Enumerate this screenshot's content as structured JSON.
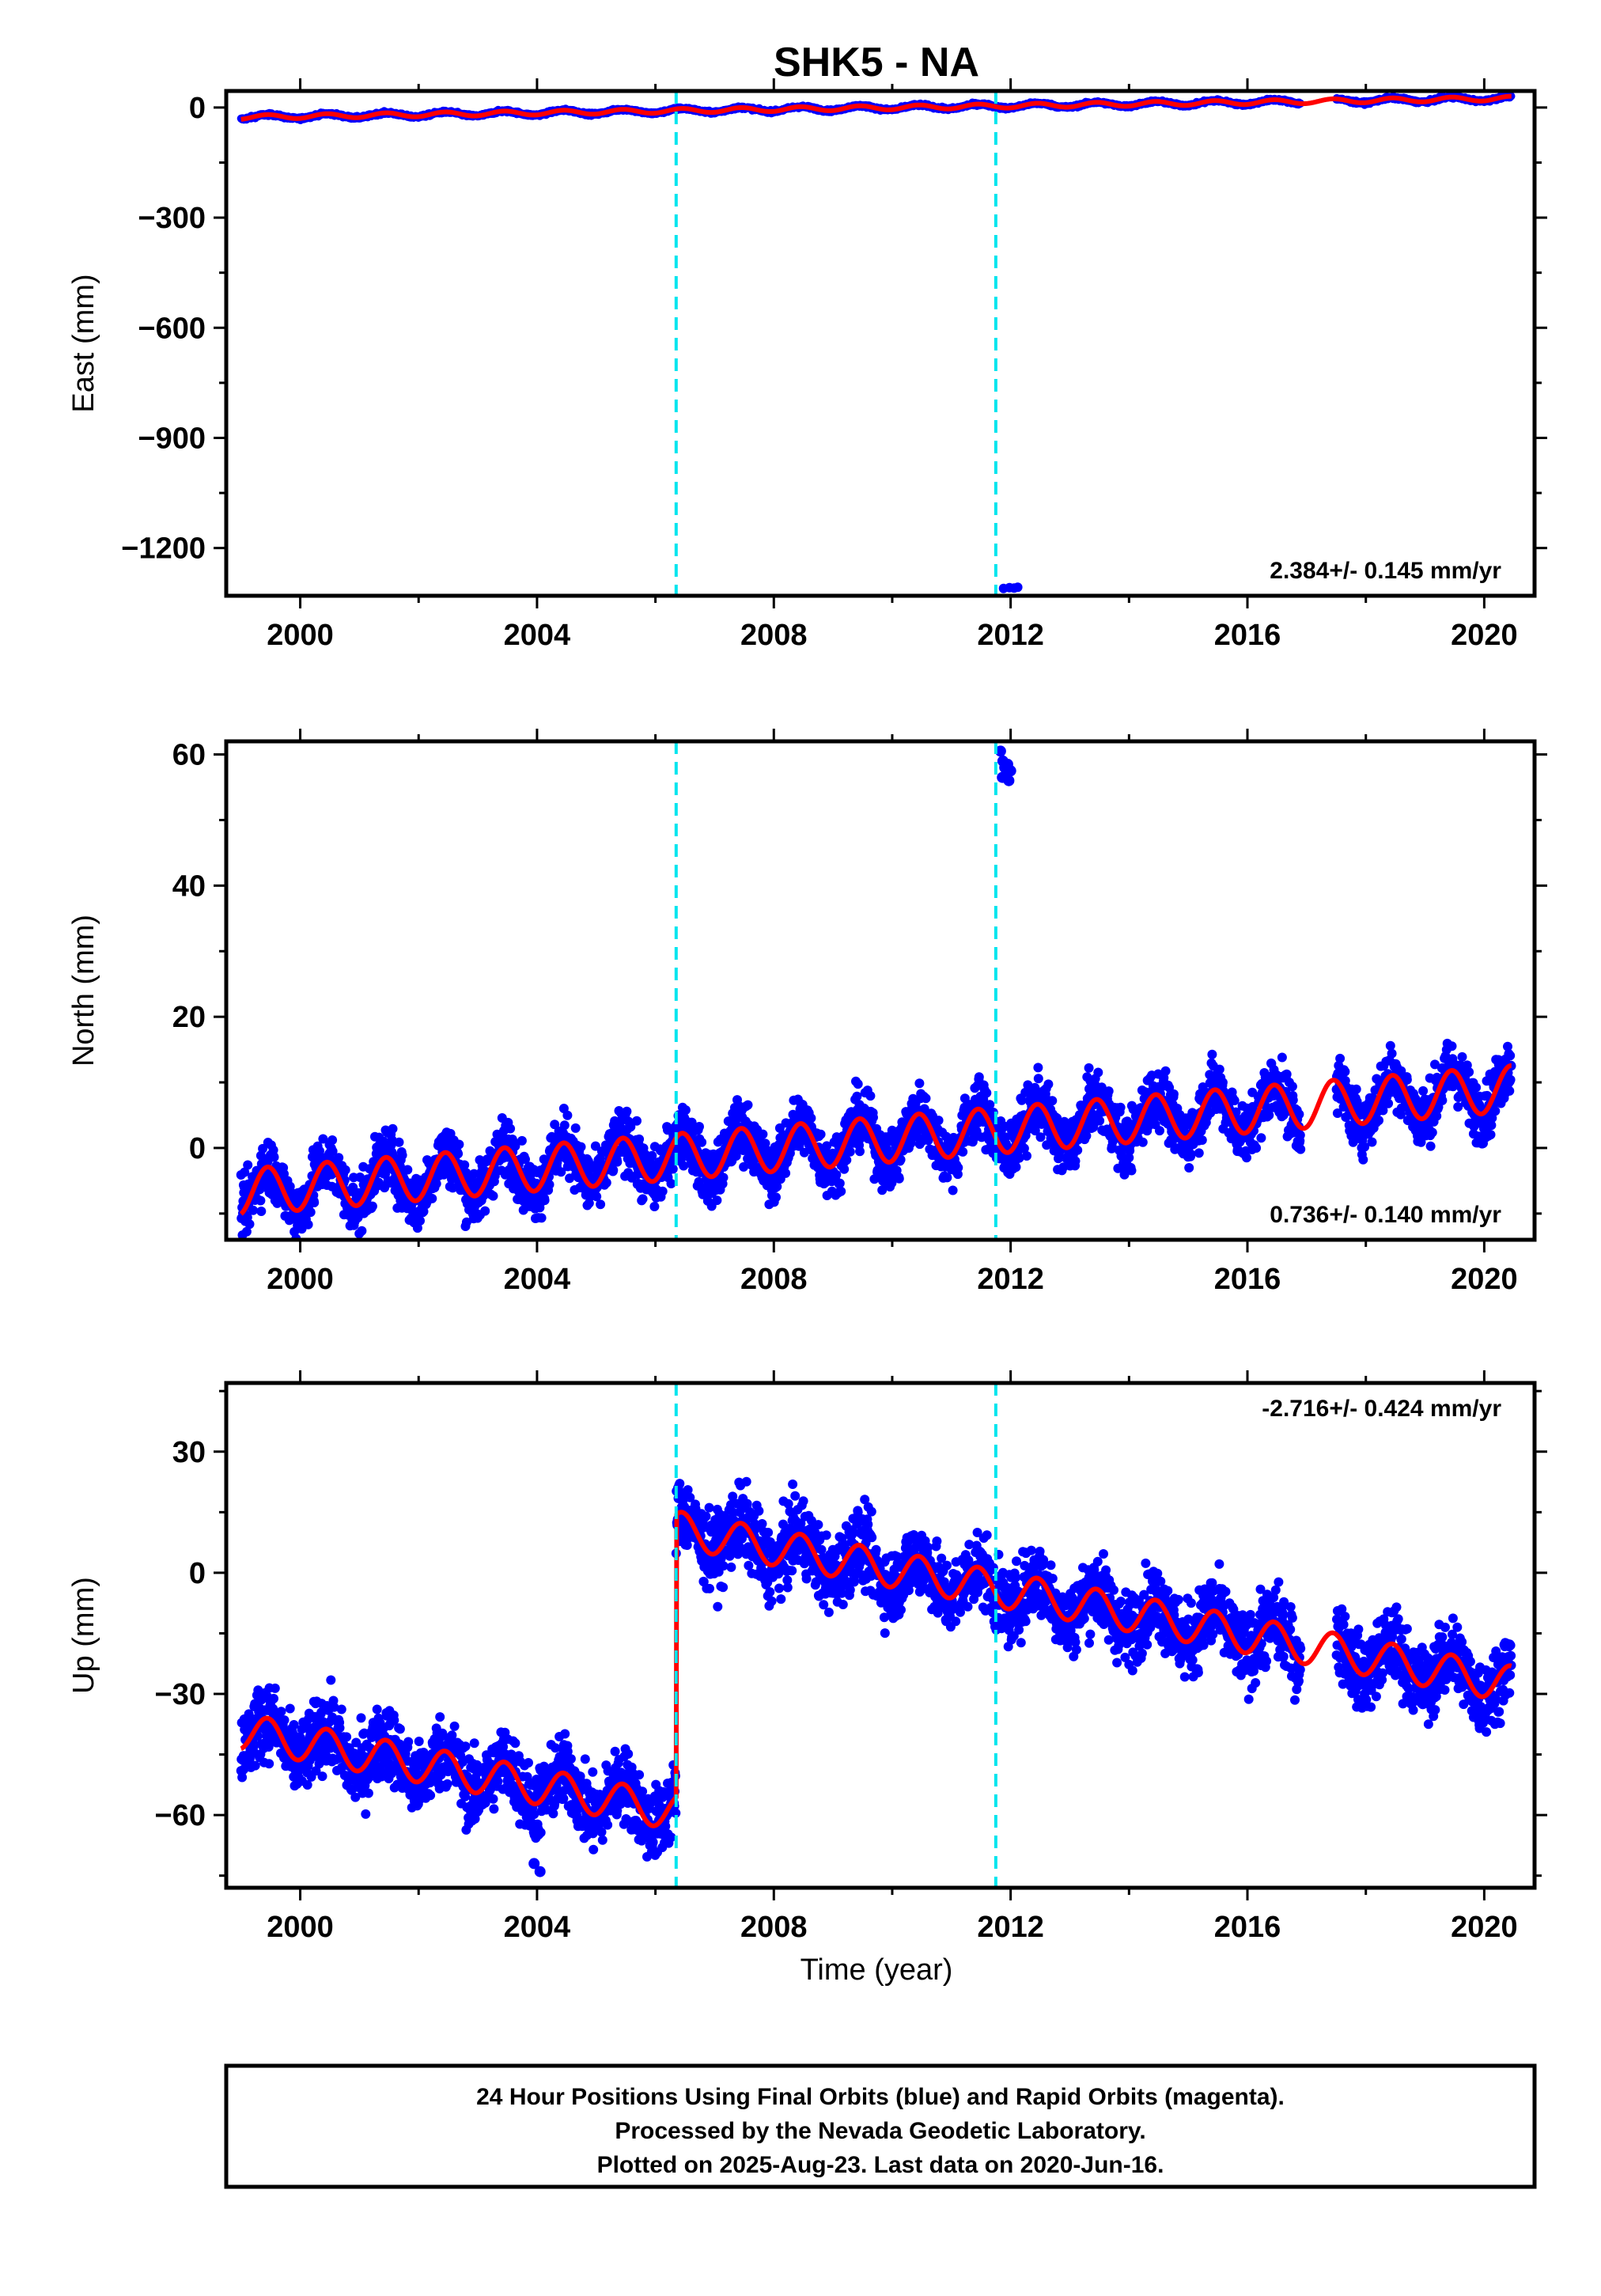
{
  "title": "SHK5 - NA",
  "xlabel": "Time (year)",
  "footer": {
    "line1": "24 Hour Positions Using Final Orbits (blue) and Rapid Orbits (magenta).",
    "line2": "Processed by the Nevada Geodetic Laboratory.",
    "line3": "Plotted on 2025-Aug-23. Last data on 2020-Jun-16."
  },
  "colors": {
    "data": "#0000ff",
    "model": "#ff0000",
    "event": "#00e5ee",
    "frame": "#000000"
  },
  "chart_data": [
    {
      "type": "scatter",
      "name": "east",
      "ylabel": "East (mm)",
      "xlim": [
        1998.75,
        2020.85
      ],
      "ylim": [
        -1330,
        45
      ],
      "xticks": [
        2000,
        2004,
        2008,
        2012,
        2016,
        2020
      ],
      "yticks": [
        0,
        -300,
        -600,
        -900,
        -1200
      ],
      "yminor_step": 150,
      "event_lines": [
        2006.35,
        2011.75
      ],
      "rate_label": "2.384+/- 0.145 mm/yr",
      "rate_label_position": "bottom-right",
      "rate_mm_per_yr": 2.384,
      "offset_at_2000_mm": -24,
      "annual_amplitude_mm": 6,
      "steps": [],
      "fit_breaks": [],
      "data_range": [
        1999.0,
        2020.46
      ],
      "outliers": [
        [
          2011.88,
          -1310
        ],
        [
          2011.98,
          -1308
        ],
        [
          2012.06,
          -1309
        ],
        [
          2012.12,
          -1307
        ]
      ],
      "scatter_mm": 2
    },
    {
      "type": "scatter",
      "name": "north",
      "ylabel": "North (mm)",
      "xlim": [
        1998.75,
        2020.85
      ],
      "ylim": [
        -14,
        62
      ],
      "xticks": [
        2000,
        2004,
        2008,
        2012,
        2016,
        2020
      ],
      "yticks": [
        0,
        20,
        40,
        60
      ],
      "yminor_step": 10,
      "event_lines": [
        2006.35,
        2011.75
      ],
      "rate_label": "0.736+/- 0.140 mm/yr",
      "rate_label_position": "bottom-right",
      "rate_mm_per_yr": 0.736,
      "offset_at_2000_mm": -6,
      "annual_amplitude_mm": 3.5,
      "steps": [],
      "fit_breaks": [],
      "data_range": [
        1999.0,
        2020.46
      ],
      "outliers": [
        [
          2011.83,
          60.5
        ],
        [
          2011.87,
          59
        ],
        [
          2011.9,
          58
        ],
        [
          2011.93,
          57
        ],
        [
          2011.97,
          56
        ],
        [
          2012.0,
          57.5
        ],
        [
          2011.86,
          56.5
        ],
        [
          2011.95,
          58.5
        ]
      ],
      "scatter_mm": 2.2
    },
    {
      "type": "scatter",
      "name": "up",
      "ylabel": "Up (mm)",
      "xlim": [
        1998.75,
        2020.85
      ],
      "ylim": [
        -78,
        47
      ],
      "xticks": [
        2000,
        2004,
        2008,
        2012,
        2016,
        2020
      ],
      "yticks": [
        30,
        0,
        -30,
        -60
      ],
      "yminor_step": 15,
      "event_lines": [
        2006.35,
        2011.75
      ],
      "rate_label": "-2.716+/- 0.424 mm/yr",
      "rate_label_position": "top-right",
      "rate_mm_per_yr": -2.716,
      "offset_at_2000_mm": -42,
      "annual_amplitude_mm": 4.5,
      "steps": [
        [
          2006.35,
          70
        ]
      ],
      "fit_breaks": [
        2011.75
      ],
      "data_range": [
        1999.0,
        2020.46
      ],
      "outliers": [
        [
          2015.15,
          -24
        ],
        [
          2004.05,
          -74
        ],
        [
          2003.95,
          -72
        ],
        [
          2016.2,
          -22
        ]
      ],
      "scatter_mm": 4.5
    }
  ]
}
